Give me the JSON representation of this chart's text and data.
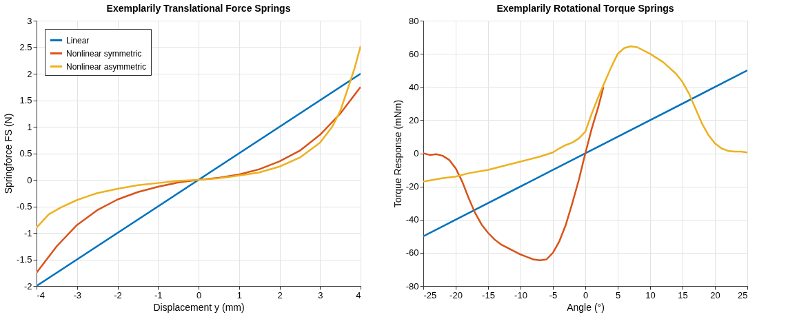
{
  "chart_data": [
    {
      "type": "line",
      "title": "Exemplarily Translational Force Springs",
      "xlabel": "Displacement y (mm)",
      "ylabel": "Springforce FS (N)",
      "xlim": [
        -4,
        4
      ],
      "xticks": [
        -4,
        -3,
        -2,
        -1,
        0,
        1,
        2,
        3,
        4
      ],
      "ylim": [
        -2,
        3
      ],
      "yticks": [
        -2,
        -1.5,
        -1,
        -0.5,
        0,
        0.5,
        1,
        1.5,
        2,
        2.5,
        3
      ],
      "grid": true,
      "legend": "top left",
      "marker": "none",
      "line_style": "solid",
      "series": [
        {
          "name": "Linear",
          "color": "#0072bd",
          "x": [
            -4,
            4
          ],
          "values": [
            -2,
            2
          ]
        },
        {
          "name": "Nonlinear symmetric",
          "color": "#d95319",
          "x": [
            -4,
            -3.5,
            -3,
            -2.5,
            -2,
            -1.5,
            -1,
            -0.5,
            0,
            0.5,
            1,
            1.5,
            2,
            2.5,
            3,
            3.5,
            4
          ],
          "values": [
            -1.75,
            -1.25,
            -0.85,
            -0.57,
            -0.37,
            -0.23,
            -0.13,
            -0.05,
            0,
            0.04,
            0.1,
            0.2,
            0.35,
            0.55,
            0.85,
            1.25,
            1.75
          ]
        },
        {
          "name": "Nonlinear asymmetric",
          "color": "#edb120",
          "x": [
            -4,
            -3.7,
            -3.4,
            -3,
            -2.7,
            -2.5,
            -2,
            -1.5,
            -1,
            -0.5,
            0,
            0.5,
            1,
            1.5,
            2,
            2.5,
            3,
            3.3,
            3.5,
            3.7,
            3.85,
            4
          ],
          "values": [
            -0.9,
            -0.65,
            -0.52,
            -0.38,
            -0.3,
            -0.25,
            -0.17,
            -0.1,
            -0.06,
            -0.02,
            0,
            0.03,
            0.08,
            0.14,
            0.25,
            0.42,
            0.7,
            1.0,
            1.3,
            1.75,
            2.1,
            2.52
          ]
        }
      ]
    },
    {
      "type": "line",
      "title": "Exemplarily Rotational Torque Springs",
      "xlabel": "Angle (°)",
      "ylabel": "Torque Response (mNm)",
      "xlim": [
        -25,
        25
      ],
      "xticks": [
        -25,
        -20,
        -15,
        -10,
        -5,
        0,
        5,
        10,
        15,
        20,
        25
      ],
      "ylim": [
        -80,
        80
      ],
      "yticks": [
        -80,
        -60,
        -40,
        -20,
        0,
        20,
        40,
        60,
        80
      ],
      "grid": true,
      "legend": "top left",
      "marker": "none",
      "line_style": "solid",
      "series": [
        {
          "name": "Linear",
          "color": "#0072bd",
          "x": [
            -25,
            25
          ],
          "values": [
            -50,
            50
          ]
        },
        {
          "name": "Nonlinear symmetric",
          "color": "#d95319",
          "x": [
            -25,
            -24,
            -23,
            -22,
            -21,
            -20,
            -19,
            -18,
            -17,
            -16,
            -15,
            -14,
            -13,
            -12,
            -10,
            -8,
            -7,
            -6,
            -5,
            -4,
            -3,
            -2,
            -1,
            0,
            1,
            2,
            2.8
          ],
          "values": [
            0,
            -1,
            -0.5,
            -1.5,
            -4,
            -9,
            -17,
            -27,
            -36,
            -43,
            -48,
            -52,
            -55,
            -57,
            -61,
            -64,
            -64.5,
            -64,
            -60,
            -53,
            -43,
            -30,
            -16,
            0,
            15,
            28,
            40
          ]
        },
        {
          "name": "Nonlinear asymmetric",
          "color": "#edb120",
          "x": [
            -25,
            -22,
            -20,
            -18,
            -15,
            -10,
            -7,
            -5,
            -4,
            -3,
            -2,
            -1,
            0,
            1,
            2,
            3,
            4,
            5,
            6,
            7,
            8,
            10,
            12,
            14,
            15,
            16,
            17,
            18,
            19,
            20,
            21,
            22,
            23,
            24,
            25
          ],
          "values": [
            -17,
            -15,
            -14,
            -12,
            -10,
            -5,
            -2,
            0.5,
            3,
            5,
            6.5,
            9,
            13,
            24,
            34,
            43,
            52,
            60,
            63.5,
            64.5,
            64,
            60,
            55,
            48,
            43,
            36,
            27,
            18,
            11,
            6,
            3,
            1.5,
            1,
            1,
            0.5
          ]
        }
      ]
    }
  ]
}
